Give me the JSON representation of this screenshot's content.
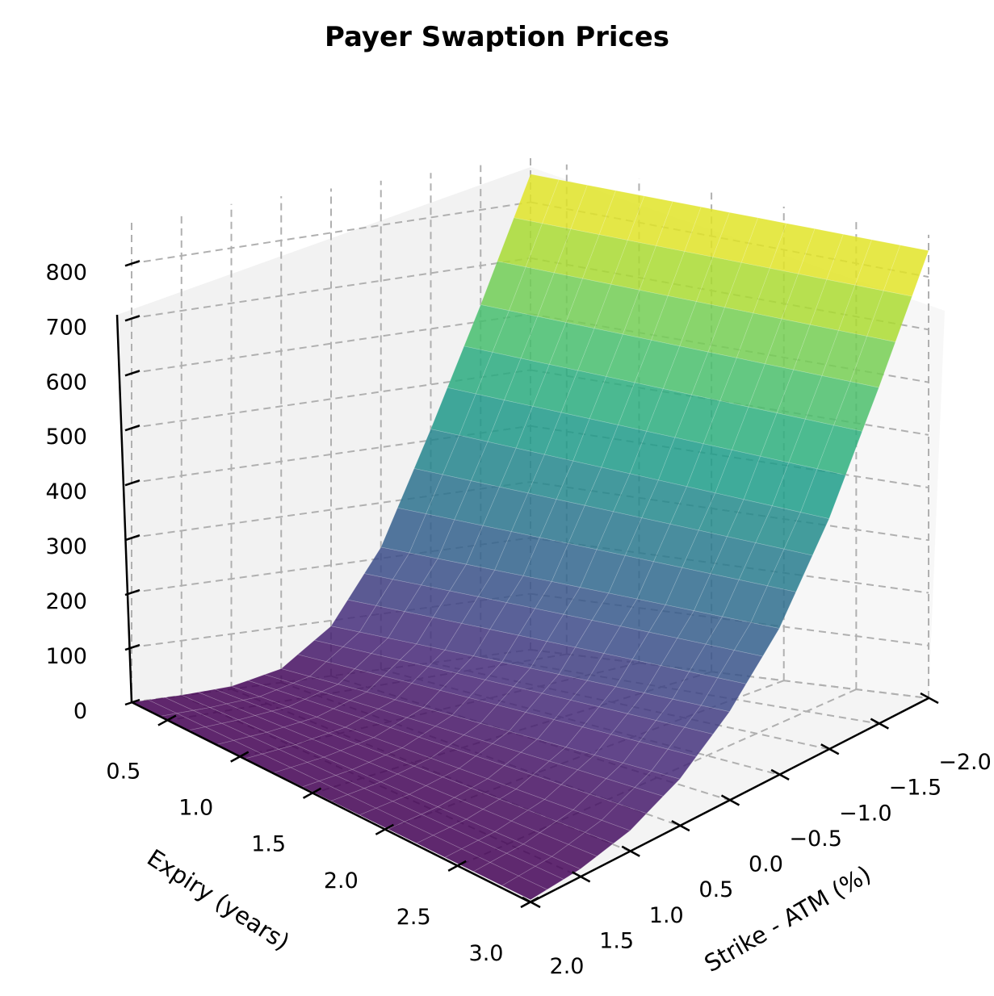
{
  "chart_data": {
    "type": "surface3d",
    "title": "Payer Swaption Prices",
    "xlabel": "Expiry (years)",
    "ylabel": "Strike - ATM (%)",
    "zlabel": "",
    "x_ticks": [
      "0.5",
      "1.0",
      "1.5",
      "2.0",
      "2.5",
      "3.0"
    ],
    "y_ticks": [
      "2.0",
      "1.5",
      "1.0",
      "0.5",
      "0.0",
      "−0.5",
      "−1.0",
      "−1.5",
      "−2.0"
    ],
    "z_ticks": [
      "0",
      "100",
      "200",
      "300",
      "400",
      "500",
      "600",
      "700",
      "800"
    ],
    "xlim": [
      0.25,
      3.0
    ],
    "ylim": [
      -2.0,
      2.0
    ],
    "zlim": [
      0,
      880
    ],
    "colormap": "viridis",
    "grid": true,
    "surface_description": "Price rises convexly as strike decreases from +2.0% to -2.0%; near zero at strike +2.0, ~850 at strike -2.0; slight increase with expiry at ATM",
    "sample_grid": {
      "strike": [
        2.0,
        1.5,
        1.0,
        0.5,
        0.0,
        -0.5,
        -1.0,
        -1.5,
        -2.0
      ],
      "expiry": [
        0.25,
        3.0
      ],
      "values": [
        [
          0,
          5
        ],
        [
          1,
          15
        ],
        [
          5,
          40
        ],
        [
          25,
          90
        ],
        [
          90,
          170
        ],
        [
          220,
          280
        ],
        [
          420,
          440
        ],
        [
          630,
          640
        ],
        [
          850,
          850
        ]
      ]
    }
  },
  "colors": {
    "pane_left": "#f2f2f2",
    "pane_right": "#f7f7f7",
    "pane_floor": "#f4f4f4",
    "grid": "#b0b0b0",
    "axis": "#000000",
    "viridis_low": "#440154",
    "viridis_high": "#fde725"
  }
}
